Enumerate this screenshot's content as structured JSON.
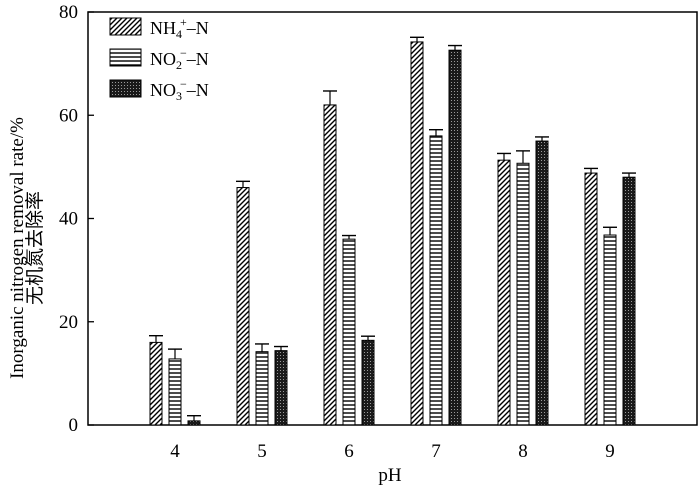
{
  "chart_data": {
    "type": "bar",
    "xlabel": "pH",
    "ylabel_cn": "无机氮去除率",
    "ylabel_en": "Inorganic nitrogen removal rate/%",
    "ylim": [
      0,
      80
    ],
    "yticks": [
      "0",
      "20",
      "40",
      "60",
      "80"
    ],
    "categories": [
      "4",
      "5",
      "6",
      "7",
      "8",
      "9"
    ],
    "legend_position": "top-left",
    "grid": false,
    "series": [
      {
        "legend": {
          "base": "NH",
          "sub": "4",
          "sup": "+",
          "tail": "–N"
        },
        "pattern": "diagonal",
        "values": [
          16.0,
          46.0,
          62.0,
          74.2,
          51.3,
          48.8
        ],
        "errors": [
          1.3,
          1.2,
          2.7,
          0.9,
          1.3,
          0.9
        ]
      },
      {
        "legend": {
          "base": "NO",
          "sub": "2",
          "sup": "−",
          "tail": "–N"
        },
        "pattern": "horizontal",
        "values": [
          12.8,
          14.2,
          36.0,
          56.0,
          50.7,
          36.8
        ],
        "errors": [
          1.9,
          1.5,
          0.7,
          1.2,
          2.4,
          1.5
        ]
      },
      {
        "legend": {
          "base": "NO",
          "sub": "3",
          "sup": "−",
          "tail": "–N"
        },
        "pattern": "dotted",
        "values": [
          0.8,
          14.4,
          16.4,
          72.6,
          55.0,
          48.0
        ],
        "errors": [
          1.0,
          0.8,
          0.8,
          0.9,
          0.8,
          0.8
        ]
      }
    ]
  }
}
